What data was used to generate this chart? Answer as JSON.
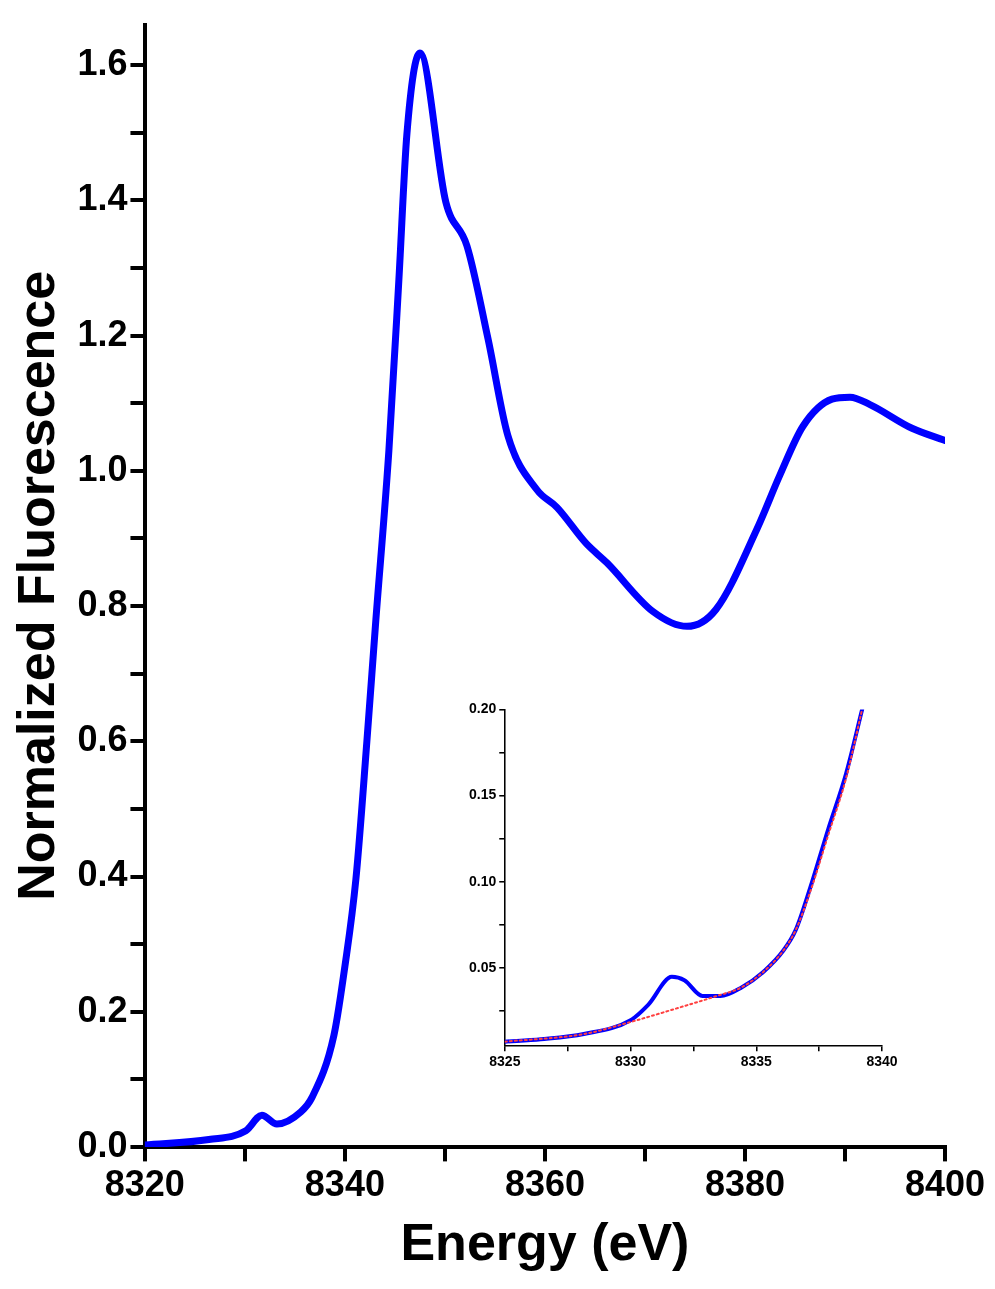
{
  "chart_data": [
    {
      "type": "line",
      "xlabel": "Energy (eV)",
      "ylabel": "Normalized Fluorescence",
      "xlim": [
        8320,
        8400
      ],
      "ylim": [
        0,
        1.66
      ],
      "xticks": [
        8320,
        {
          "value": 8330,
          "label": null
        },
        8340,
        {
          "value": 8350,
          "label": null
        },
        8360,
        {
          "value": 8370,
          "label": null
        },
        8380,
        {
          "value": 8390,
          "label": null
        },
        8400
      ],
      "yticks": [
        {
          "value": 0,
          "label": "0.0"
        },
        {
          "value": 0.1,
          "label": null
        },
        0.2,
        {
          "value": 0.3,
          "label": null
        },
        0.4,
        {
          "value": 0.5,
          "label": null
        },
        0.6,
        {
          "value": 0.7,
          "label": null
        },
        0.8,
        {
          "value": 0.9,
          "label": null
        },
        {
          "value": 1,
          "label": "1.0"
        },
        {
          "value": 1.1,
          "label": null
        },
        1.2,
        {
          "value": 1.3,
          "label": null
        },
        1.4,
        {
          "value": 1.5,
          "label": null
        },
        1.6
      ],
      "series": [
        {
          "color": "#0000ff",
          "line_style": "solid",
          "x": [
            8320,
            8326.4,
            8330.1,
            8331.7,
            8333.2,
            8335.6,
            8336.7,
            8338.9,
            8340.0,
            8341.1,
            8342.2,
            8343.1,
            8344.4,
            8345.4,
            8346.2,
            8347.5,
            8350.1,
            8352.2,
            8354.3,
            8356.3,
            8359.2,
            8361.2,
            8364.1,
            8366.2,
            8370.8,
            8374.2,
            8377.1,
            8381.2,
            8383.5,
            8385.8,
            8388.7,
            8390.5,
            8392.5,
            8396.7,
            8400
          ],
          "values": [
            0.003,
            0.011,
            0.024,
            0.047,
            0.034,
            0.052,
            0.073,
            0.165,
            0.267,
            0.396,
            0.6,
            0.78,
            1.03,
            1.283,
            1.498,
            1.618,
            1.397,
            1.333,
            1.196,
            1.052,
            0.972,
            0.946,
            0.893,
            0.864,
            0.792,
            0.77,
            0.795,
            0.914,
            0.994,
            1.066,
            1.106,
            1.109,
            1.098,
            1.063,
            1.045
          ]
        }
      ]
    },
    {
      "type": "line",
      "xlim": [
        8325,
        8340
      ],
      "ylim": [
        0.005,
        0.2
      ],
      "xticks": [
        8325,
        {
          "value": 8327.5,
          "label": null
        },
        8330,
        {
          "value": 8332.5,
          "label": null
        },
        8335,
        {
          "value": 8337.5,
          "label": null
        },
        8340
      ],
      "yticks": [
        {
          "value": 0.025,
          "label": null
        },
        0.05,
        {
          "value": 0.075,
          "label": null
        },
        {
          "value": 0.1,
          "label": "0.10"
        },
        {
          "value": 0.125,
          "label": null
        },
        0.15,
        {
          "value": 0.175,
          "label": null
        },
        {
          "value": 0.2,
          "label": "0.20"
        }
      ],
      "series": [
        {
          "color": "#0000ff",
          "line_style": "solid",
          "x": [
            8325,
            8326.43,
            8328.14,
            8330,
            8330.71,
            8331.64,
            8332.14,
            8332.86,
            8333.57,
            8334.43,
            8335.29,
            8336.07,
            8336.57,
            8337.14,
            8337.86,
            8338.57,
            8339.21
          ],
          "values": [
            0.0073,
            0.0087,
            0.0117,
            0.0197,
            0.0288,
            0.0449,
            0.0429,
            0.0338,
            0.0338,
            0.0389,
            0.0479,
            0.06,
            0.0721,
            0.0963,
            0.1305,
            0.1627,
            0.2
          ]
        },
        {
          "color": "#ff4040",
          "line_style": "dotted",
          "x": [
            8325,
            8328.14,
            8330,
            8331.7,
            8333.43,
            8334.43,
            8335.29,
            8336.07,
            8336.57,
            8337.14,
            8337.86,
            8338.57,
            8339.21
          ],
          "values": [
            0.0073,
            0.0117,
            0.0187,
            0.026,
            0.0338,
            0.0389,
            0.0479,
            0.06,
            0.0721,
            0.094,
            0.127,
            0.16,
            0.2
          ]
        }
      ]
    }
  ]
}
